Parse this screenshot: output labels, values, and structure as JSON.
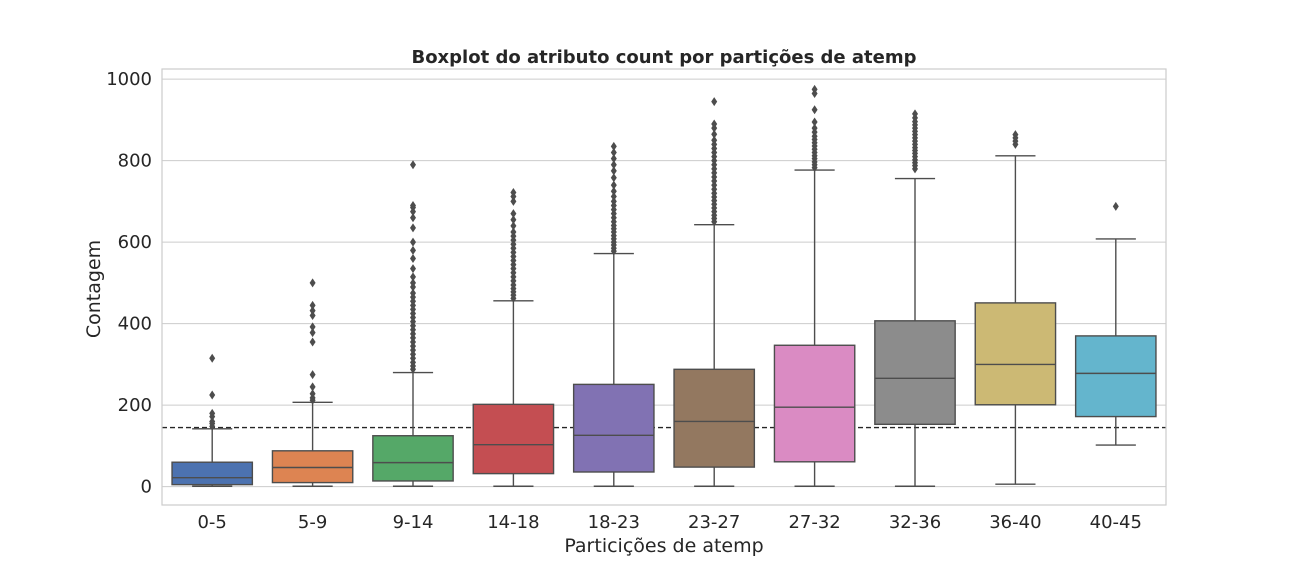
{
  "chart_data": {
    "type": "boxplot",
    "title": "Boxplot do atributo count por partições de atemp",
    "xlabel": "Particições de atemp",
    "ylabel": "Contagem",
    "ylim": [
      -45,
      1025
    ],
    "yticks": [
      0,
      200,
      400,
      600,
      800,
      1000
    ],
    "grid": true,
    "reference_line": {
      "value": 145,
      "style": "dashed"
    },
    "categories": [
      "0-5",
      "5-9",
      "9-14",
      "14-18",
      "18-23",
      "23-27",
      "27-32",
      "32-36",
      "36-40",
      "40-45"
    ],
    "colors": [
      "#4c72b0",
      "#dd8452",
      "#55a868",
      "#c44e52",
      "#8172b3",
      "#937860",
      "#da8bc3",
      "#8c8c8c",
      "#ccb974",
      "#64b5cd"
    ],
    "boxes": [
      {
        "label": "0-5",
        "whisker_low": 1,
        "q1": 5,
        "median": 22,
        "q3": 60,
        "whisker_high": 142,
        "fliers": [
          148,
          155,
          160,
          172,
          180,
          225,
          315
        ]
      },
      {
        "label": "5-9",
        "whisker_low": 1,
        "q1": 10,
        "median": 47,
        "q3": 88,
        "whisker_high": 207,
        "fliers": [
          212,
          218,
          228,
          245,
          275,
          355,
          378,
          392,
          420,
          432,
          445,
          500
        ]
      },
      {
        "label": "9-14",
        "whisker_low": 1,
        "q1": 14,
        "median": 59,
        "q3": 125,
        "whisker_high": 280,
        "fliers": [
          288,
          296,
          305,
          315,
          325,
          335,
          345,
          355,
          365,
          375,
          385,
          395,
          405,
          415,
          425,
          435,
          445,
          455,
          465,
          475,
          490,
          500,
          515,
          535,
          560,
          580,
          600,
          635,
          660,
          675,
          685,
          690,
          790
        ]
      },
      {
        "label": "14-18",
        "whisker_low": 1,
        "q1": 32,
        "median": 103,
        "q3": 202,
        "whisker_high": 456,
        "fliers": [
          462,
          470,
          478,
          486,
          495,
          505,
          515,
          525,
          535,
          545,
          555,
          565,
          575,
          585,
          595,
          605,
          615,
          625,
          640,
          655,
          670,
          700,
          712,
          722
        ]
      },
      {
        "label": "18-23",
        "whisker_low": 1,
        "q1": 36,
        "median": 126,
        "q3": 251,
        "whisker_high": 572,
        "fliers": [
          578,
          585,
          593,
          600,
          608,
          616,
          625,
          633,
          641,
          650,
          660,
          670,
          680,
          690,
          700,
          712,
          725,
          740,
          758,
          775,
          790,
          805,
          820,
          835
        ]
      },
      {
        "label": "23-27",
        "whisker_low": 1,
        "q1": 48,
        "median": 160,
        "q3": 288,
        "whisker_high": 643,
        "fliers": [
          650,
          658,
          666,
          675,
          684,
          693,
          702,
          711,
          720,
          730,
          740,
          750,
          760,
          770,
          780,
          790,
          800,
          810,
          820,
          830,
          840,
          850,
          865,
          880,
          890,
          945
        ]
      },
      {
        "label": "27-32",
        "whisker_low": 1,
        "q1": 61,
        "median": 195,
        "q3": 347,
        "whisker_high": 777,
        "fliers": [
          783,
          790,
          797,
          805,
          812,
          820,
          828,
          836,
          844,
          852,
          860,
          870,
          880,
          895,
          925,
          965,
          975
        ]
      },
      {
        "label": "32-36",
        "whisker_low": 1,
        "q1": 153,
        "median": 266,
        "q3": 407,
        "whisker_high": 756,
        "fliers": [
          780,
          788,
          795,
          802,
          810,
          818,
          825,
          832,
          840,
          848,
          856,
          864,
          872,
          880,
          888,
          896,
          905,
          915
        ]
      },
      {
        "label": "36-40",
        "whisker_low": 6,
        "q1": 201,
        "median": 300,
        "q3": 451,
        "whisker_high": 812,
        "fliers": [
          840,
          848,
          856,
          864
        ]
      },
      {
        "label": "40-45",
        "whisker_low": 102,
        "q1": 172,
        "median": 278,
        "q3": 370,
        "whisker_high": 608,
        "fliers": [
          688
        ]
      }
    ]
  }
}
